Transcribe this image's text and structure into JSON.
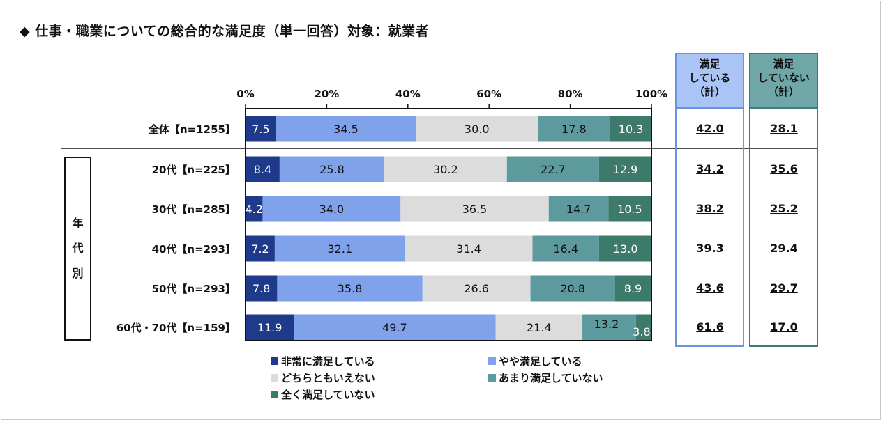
{
  "title": "◆ 仕事・職業についての総合的な満足度（単一回答）対象：就業者",
  "colors": {
    "very_satisfied": "#1f3a8a",
    "somewhat_satisfied": "#7fa2ea",
    "neither": "#dcdcdc",
    "not_very_satisfied": "#5d9a9e",
    "not_at_all_satisfied": "#3d7a6b",
    "sum_satisfied_bg": "#a9c4f5",
    "sum_satisfied_border": "#6b93e0",
    "sum_not_satisfied_bg": "#6fa6a8",
    "sum_not_satisfied_border": "#3d7a7d"
  },
  "group_label": [
    "年",
    "代",
    "別"
  ],
  "summary_headers": {
    "satisfied": [
      "満足",
      "している",
      "（計）"
    ],
    "not_satisfied": [
      "満足",
      "していない",
      "（計）"
    ]
  },
  "chart_data": {
    "type": "bar",
    "orientation": "horizontal-stacked-100",
    "x_ticks": [
      "0%",
      "20%",
      "40%",
      "60%",
      "80%",
      "100%"
    ],
    "xlim": [
      0,
      100
    ],
    "categories": [
      "全体【n=1255】",
      "20代【n=225】",
      "30代【n=285】",
      "40代【n=293】",
      "50代【n=293】",
      "60代・70代【n=159】"
    ],
    "series": [
      {
        "name": "非常に満足している",
        "color_key": "very_satisfied",
        "label_color": "#ffffff",
        "values": [
          7.5,
          8.4,
          4.2,
          7.2,
          7.8,
          11.9
        ]
      },
      {
        "name": "やや満足している",
        "color_key": "somewhat_satisfied",
        "label_color": "#111111",
        "values": [
          34.5,
          25.8,
          34.0,
          32.1,
          35.8,
          49.7
        ]
      },
      {
        "name": "どちらともいえない",
        "color_key": "neither",
        "label_color": "#111111",
        "values": [
          30.0,
          30.2,
          36.5,
          31.4,
          26.6,
          21.4
        ]
      },
      {
        "name": "あまり満足していない",
        "color_key": "not_very_satisfied",
        "label_color": "#111111",
        "values": [
          17.8,
          22.7,
          14.7,
          16.4,
          20.8,
          13.2
        ]
      },
      {
        "name": "全く満足していない",
        "color_key": "not_at_all_satisfied",
        "label_color": "#ffffff",
        "values": [
          10.3,
          12.9,
          10.5,
          13.0,
          8.9,
          3.8
        ]
      }
    ],
    "labels": [
      [
        "7.5",
        "34.5",
        "30.0",
        "17.8",
        "10.3"
      ],
      [
        "8.4",
        "25.8",
        "30.2",
        "22.7",
        "12.9"
      ],
      [
        "4.2",
        "34.0",
        "36.5",
        "14.7",
        "10.5"
      ],
      [
        "7.2",
        "32.1",
        "31.4",
        "16.4",
        "13.0"
      ],
      [
        "7.8",
        "35.8",
        "26.6",
        "20.8",
        "8.9"
      ],
      [
        "11.9",
        "49.7",
        "21.4",
        "13.2",
        "3.8"
      ]
    ],
    "summary_satisfied": [
      "42.0",
      "34.2",
      "38.2",
      "39.3",
      "43.6",
      "61.6"
    ],
    "summary_not_satisfied": [
      "28.1",
      "35.6",
      "25.2",
      "29.4",
      "29.7",
      "17.0"
    ],
    "legend": [
      "非常に満足している",
      "やや満足している",
      "どちらともいえない",
      "あまり満足していない",
      "全く満足していない"
    ]
  }
}
